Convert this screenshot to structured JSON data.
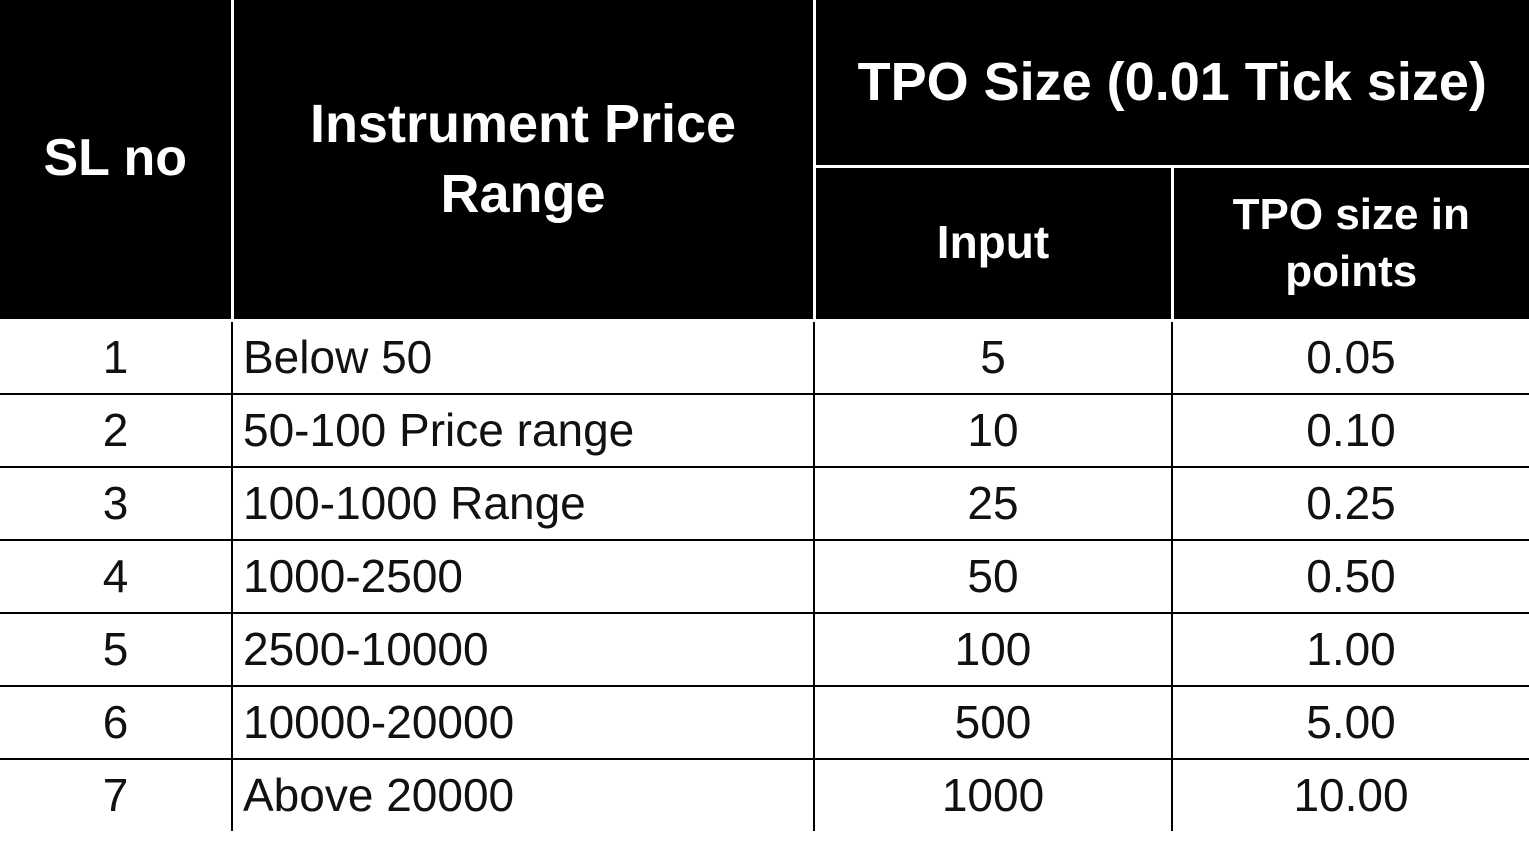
{
  "table": {
    "header": {
      "sl_no": "SL no",
      "price_range": "Instrument Price Range",
      "tpo_group": "TPO Size (0.01 Tick size)",
      "input": "Input",
      "points": "TPO size in points"
    },
    "rows": [
      [
        "1",
        "Below 50",
        "5",
        "0.05"
      ],
      [
        "2",
        "50-100 Price range",
        "10",
        "0.10"
      ],
      [
        "3",
        "100-1000 Range",
        "25",
        "0.25"
      ],
      [
        "4",
        "1000-2500",
        "50",
        "0.50"
      ],
      [
        "5",
        "2500-10000",
        "100",
        "1.00"
      ],
      [
        "6",
        "10000-20000",
        "500",
        "5.00"
      ],
      [
        "7",
        "Above 20000",
        "1000",
        "10.00"
      ]
    ]
  }
}
